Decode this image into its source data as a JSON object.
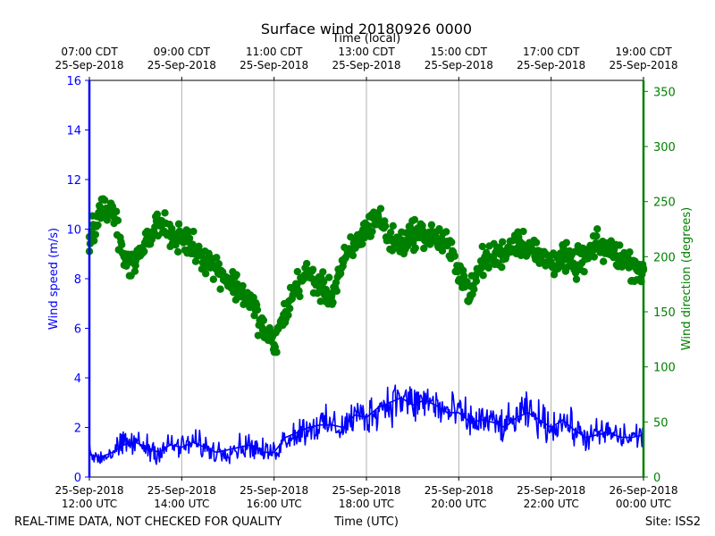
{
  "chart_data": {
    "type": "line+scatter",
    "title": "Surface wind 20180926 0000",
    "top_axis_label": "Time (local)",
    "top_ticks": [
      {
        "line1": "07:00 CDT",
        "line2": "25-Sep-2018"
      },
      {
        "line1": "09:00 CDT",
        "line2": "25-Sep-2018"
      },
      {
        "line1": "11:00 CDT",
        "line2": "25-Sep-2018"
      },
      {
        "line1": "13:00 CDT",
        "line2": "25-Sep-2018"
      },
      {
        "line1": "15:00 CDT",
        "line2": "25-Sep-2018"
      },
      {
        "line1": "17:00 CDT",
        "line2": "25-Sep-2018"
      },
      {
        "line1": "19:00 CDT",
        "line2": "25-Sep-2018"
      }
    ],
    "bottom_ticks": [
      {
        "line1": "25-Sep-2018",
        "line2": "12:00 UTC"
      },
      {
        "line1": "25-Sep-2018",
        "line2": "14:00 UTC"
      },
      {
        "line1": "25-Sep-2018",
        "line2": "16:00 UTC"
      },
      {
        "line1": "25-Sep-2018",
        "line2": "18:00 UTC"
      },
      {
        "line1": "25-Sep-2018",
        "line2": "20:00 UTC"
      },
      {
        "line1": "25-Sep-2018",
        "line2": "22:00 UTC"
      },
      {
        "line1": "26-Sep-2018",
        "line2": "00:00 UTC"
      }
    ],
    "xlabel": "Time (UTC)",
    "xlim_hours_utc": [
      12,
      24
    ],
    "ylabel_left": "Wind speed (m/s)",
    "ylim_left": [
      0,
      16
    ],
    "yticks_left": [
      "0",
      "2",
      "4",
      "6",
      "8",
      "10",
      "12",
      "14",
      "16"
    ],
    "ylabel_right": "Wind direction (degrees)",
    "ylim_right": [
      0,
      360
    ],
    "yticks_right": [
      "0",
      "50",
      "100",
      "150",
      "200",
      "250",
      "300",
      "350"
    ],
    "grid": "vertical",
    "colors": {
      "speed": "#0000ff",
      "direction": "#008000",
      "grid": "#b0b0b0",
      "text": "#000000"
    },
    "series": [
      {
        "name": "Wind speed (m/s)",
        "axis": "left",
        "style": "line",
        "x_hours_utc": [
          12.0,
          12.25,
          12.5,
          12.75,
          13.0,
          13.25,
          13.5,
          13.75,
          14.0,
          14.25,
          14.5,
          14.75,
          15.0,
          15.25,
          15.5,
          15.75,
          16.0,
          16.25,
          16.5,
          16.75,
          17.0,
          17.25,
          17.5,
          17.75,
          18.0,
          18.25,
          18.5,
          18.75,
          19.0,
          19.25,
          19.5,
          19.75,
          20.0,
          20.25,
          20.5,
          20.75,
          21.0,
          21.25,
          21.5,
          21.75,
          22.0,
          22.25,
          22.5,
          22.75,
          23.0,
          23.25,
          23.5,
          23.75,
          24.0
        ],
        "values": [
          0.9,
          0.8,
          1.0,
          1.3,
          1.4,
          1.2,
          1.0,
          1.3,
          1.2,
          1.4,
          1.2,
          1.0,
          1.1,
          1.2,
          1.3,
          1.0,
          1.0,
          1.6,
          1.8,
          2.0,
          2.1,
          2.1,
          2.0,
          2.5,
          2.4,
          2.8,
          3.0,
          3.2,
          2.9,
          3.1,
          2.9,
          2.6,
          2.6,
          2.2,
          2.3,
          2.2,
          2.0,
          2.4,
          2.6,
          2.3,
          2.0,
          2.3,
          1.9,
          1.6,
          1.7,
          1.8,
          1.6,
          1.6,
          1.7
        ]
      },
      {
        "name": "Wind direction (degrees)",
        "axis": "right",
        "style": "scatter",
        "x_hours_utc": [
          12.0,
          12.25,
          12.5,
          12.75,
          13.0,
          13.25,
          13.5,
          13.75,
          14.0,
          14.25,
          14.5,
          14.75,
          15.0,
          15.25,
          15.5,
          15.75,
          16.0,
          16.25,
          16.5,
          16.75,
          17.0,
          17.25,
          17.5,
          17.75,
          18.0,
          18.25,
          18.5,
          18.75,
          19.0,
          19.25,
          19.5,
          19.75,
          20.0,
          20.25,
          20.5,
          20.75,
          21.0,
          21.25,
          21.5,
          21.75,
          22.0,
          22.25,
          22.5,
          22.75,
          23.0,
          23.25,
          23.5,
          23.75,
          24.0
        ],
        "values": [
          218,
          240,
          245,
          200,
          192,
          215,
          230,
          220,
          218,
          210,
          198,
          190,
          180,
          170,
          160,
          135,
          120,
          150,
          175,
          185,
          172,
          165,
          195,
          210,
          225,
          238,
          215,
          212,
          222,
          220,
          218,
          210,
          190,
          165,
          195,
          200,
          205,
          215,
          210,
          200,
          195,
          200,
          192,
          200,
          210,
          205,
          200,
          192,
          188
        ]
      }
    ]
  },
  "footer": {
    "left": "REAL-TIME DATA, NOT CHECKED FOR QUALITY",
    "right": "Site: ISS2"
  }
}
